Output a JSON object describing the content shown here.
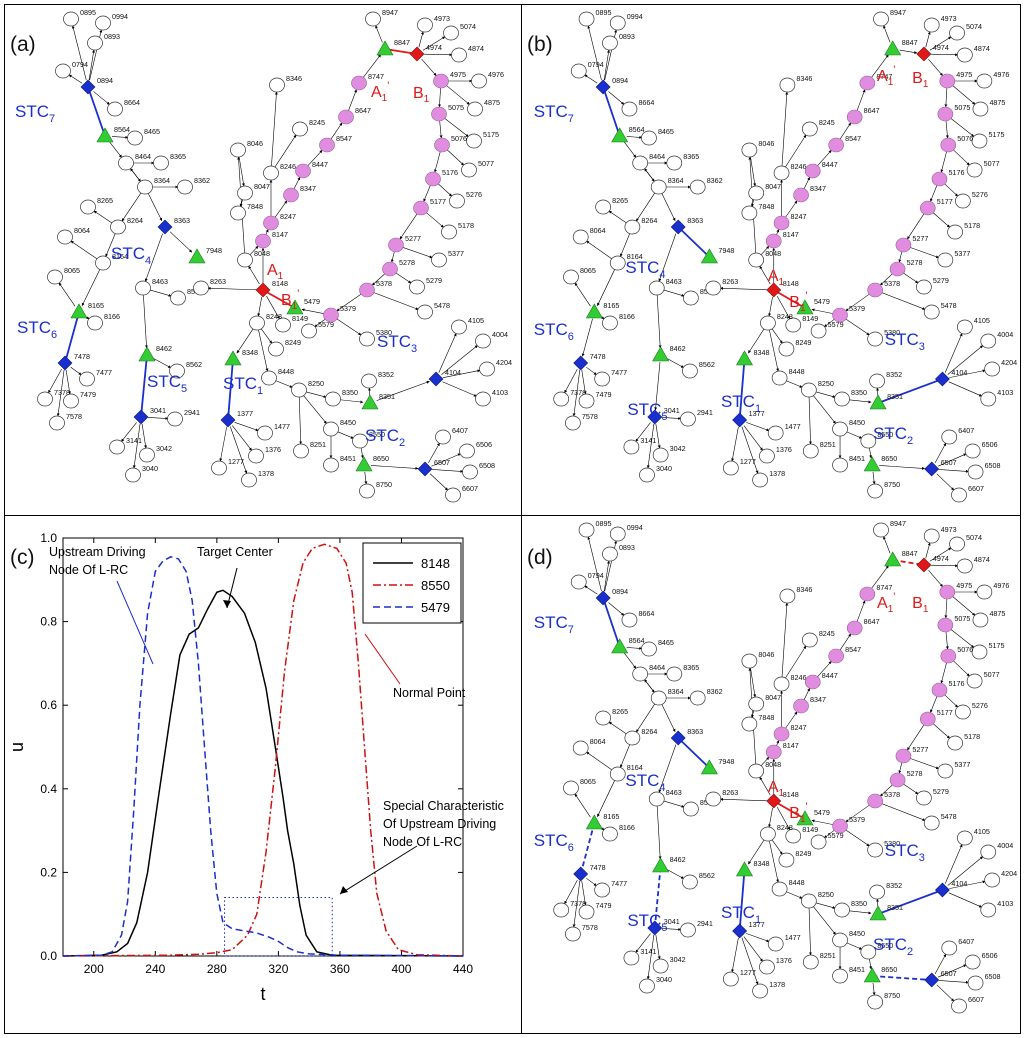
{
  "panels": {
    "a": "(a)",
    "b": "(b)",
    "c": "(c)",
    "d": "(d)"
  },
  "colors": {
    "pink": "#e08de0",
    "green": "#33cc33",
    "blue": "#1a2fcc",
    "red": "#e01818",
    "black": "#000000",
    "redcurve": "#d01010",
    "bluecurve": "#1a2fcc"
  },
  "network": {
    "nodes": [
      [
        "0895",
        ".",
        ""
      ],
      [
        "0994",
        ".",
        ""
      ],
      [
        "0893",
        ".",
        ""
      ],
      [
        "0794",
        ".",
        ""
      ],
      [
        "0894",
        "blue",
        ""
      ],
      [
        "8664",
        ".",
        ""
      ],
      [
        "8564",
        "green",
        ""
      ],
      [
        "8465",
        ".",
        ""
      ],
      [
        "8464",
        ".",
        ""
      ],
      [
        "8365",
        ".",
        ""
      ],
      [
        "8364",
        ".",
        ""
      ],
      [
        "8362",
        ".",
        ""
      ],
      [
        "8363",
        "blue",
        ""
      ],
      [
        "8265",
        ".",
        ""
      ],
      [
        "8264",
        ".",
        ""
      ],
      [
        "8064",
        ".",
        ""
      ],
      [
        "8164",
        ".",
        ""
      ],
      [
        "8065",
        ".",
        ""
      ],
      [
        "8165",
        "green",
        ""
      ],
      [
        "8166",
        ".",
        ""
      ],
      [
        "7478",
        "blue",
        ""
      ],
      [
        "7477",
        ".",
        ""
      ],
      [
        "7378",
        ".",
        ""
      ],
      [
        "7479",
        ".",
        ""
      ],
      [
        "7578",
        ".",
        ""
      ],
      [
        "8463",
        ".",
        ""
      ],
      [
        "8563",
        ".",
        ""
      ],
      [
        "8462",
        "green",
        ""
      ],
      [
        "8562",
        ".",
        ""
      ],
      [
        "3041",
        "blue",
        ""
      ],
      [
        "2941",
        ".",
        ""
      ],
      [
        "3141",
        ".",
        ""
      ],
      [
        "3042",
        ".",
        ""
      ],
      [
        "3040",
        ".",
        ""
      ],
      [
        "8346",
        ".",
        ""
      ],
      [
        "8245",
        ".",
        ""
      ],
      [
        "8046",
        ".",
        ""
      ],
      [
        "8246",
        ".",
        ""
      ],
      [
        "8047",
        ".",
        ""
      ],
      [
        "7848",
        ".",
        ""
      ],
      [
        "7948",
        "green",
        ""
      ],
      [
        "8048",
        ".",
        ""
      ],
      [
        "8263",
        ".",
        ""
      ],
      [
        "8147",
        "pink",
        ""
      ],
      [
        "8247",
        "pink",
        ""
      ],
      [
        "8347",
        "pink",
        ""
      ],
      [
        "8447",
        "pink",
        ""
      ],
      [
        "8547",
        "pink",
        ""
      ],
      [
        "8647",
        "pink",
        ""
      ],
      [
        "8747",
        "pink",
        ""
      ],
      [
        "8847",
        "green",
        ""
      ],
      [
        "8947",
        ".",
        ""
      ],
      [
        "4974",
        "red",
        ""
      ],
      [
        "4973",
        ".",
        ""
      ],
      [
        "5074",
        ".",
        ""
      ],
      [
        "4874",
        ".",
        ""
      ],
      [
        "4975",
        "pink",
        ""
      ],
      [
        "4976",
        ".",
        ""
      ],
      [
        "4875",
        ".",
        ""
      ],
      [
        "5075",
        "pink",
        ""
      ],
      [
        "5175",
        ".",
        ""
      ],
      [
        "5076",
        "pink",
        ""
      ],
      [
        "5077",
        ".",
        ""
      ],
      [
        "5176",
        "pink",
        ""
      ],
      [
        "5276",
        ".",
        ""
      ],
      [
        "5177",
        "pink",
        ""
      ],
      [
        "5178",
        ".",
        ""
      ],
      [
        "5277",
        "pink",
        ""
      ],
      [
        "5377",
        ".",
        ""
      ],
      [
        "5278",
        "pink",
        ""
      ],
      [
        "5279",
        ".",
        ""
      ],
      [
        "5378",
        "pink",
        ""
      ],
      [
        "5478",
        ".",
        ""
      ],
      [
        "5379",
        "pink",
        ""
      ],
      [
        "5380",
        ".",
        ""
      ],
      [
        "5579",
        ".",
        ""
      ],
      [
        "5479",
        "green",
        ""
      ],
      [
        "8148",
        "red",
        ""
      ],
      [
        "8149",
        ".",
        ""
      ],
      [
        "8248",
        ".",
        ""
      ],
      [
        "8249",
        ".",
        ""
      ],
      [
        "8348",
        "green",
        ""
      ],
      [
        "8448",
        ".",
        ""
      ],
      [
        "8250",
        ".",
        ""
      ],
      [
        "1377",
        "blue",
        ""
      ],
      [
        "1477",
        ".",
        ""
      ],
      [
        "1376",
        ".",
        ""
      ],
      [
        "1277",
        ".",
        ""
      ],
      [
        "1378",
        ".",
        ""
      ],
      [
        "8350",
        ".",
        ""
      ],
      [
        "8351",
        "green",
        ""
      ],
      [
        "8352",
        ".",
        ""
      ],
      [
        "8450",
        ".",
        ""
      ],
      [
        "8251",
        ".",
        ""
      ],
      [
        "8550",
        ".",
        ""
      ],
      [
        "8451",
        ".",
        ""
      ],
      [
        "8650",
        "green",
        ""
      ],
      [
        "8750",
        ".",
        ""
      ],
      [
        "6507",
        "blue",
        ""
      ],
      [
        "6407",
        ".",
        ""
      ],
      [
        "6506",
        ".",
        ""
      ],
      [
        "6508",
        ".",
        ""
      ],
      [
        "6607",
        ".",
        ""
      ],
      [
        "4104",
        "blue",
        ""
      ],
      [
        "4105",
        ".",
        ""
      ],
      [
        "4004",
        ".",
        ""
      ],
      [
        "4204",
        ".",
        ""
      ],
      [
        "4103",
        ".",
        ""
      ]
    ],
    "stc_labels": [
      [
        "STC",
        "7"
      ],
      [
        "STC",
        "4"
      ],
      [
        "STC",
        "6"
      ],
      [
        "STC",
        "5"
      ],
      [
        "STC",
        "1"
      ],
      [
        "STC",
        "3"
      ],
      [
        "STC",
        "2"
      ]
    ],
    "red_labels": [
      [
        "A",
        "1",
        ""
      ],
      [
        "B",
        "1",
        "'"
      ],
      [
        "A",
        "1",
        "'"
      ],
      [
        "B",
        "1",
        ""
      ]
    ]
  },
  "chart_data": {
    "type": "line",
    "xlabel": "t",
    "ylabel": "u",
    "xlim": [
      180,
      440
    ],
    "ylim": [
      0.0,
      1.0
    ],
    "xticks": [
      "200",
      "240",
      "280",
      "320",
      "360",
      "400",
      "440"
    ],
    "yticks": [
      "0.0",
      "0.2",
      "0.4",
      "0.6",
      "0.8",
      "1.0"
    ],
    "legend_position": "top-right",
    "series": [
      {
        "name": "8148",
        "style": "solid",
        "color": "#000000",
        "points": [
          [
            180,
            0
          ],
          [
            205,
            0.002
          ],
          [
            215,
            0.01
          ],
          [
            222,
            0.03
          ],
          [
            228,
            0.08
          ],
          [
            235,
            0.2
          ],
          [
            242,
            0.38
          ],
          [
            250,
            0.58
          ],
          [
            256,
            0.72
          ],
          [
            262,
            0.77
          ],
          [
            268,
            0.785
          ],
          [
            274,
            0.83
          ],
          [
            280,
            0.87
          ],
          [
            284,
            0.875
          ],
          [
            290,
            0.86
          ],
          [
            298,
            0.82
          ],
          [
            305,
            0.75
          ],
          [
            312,
            0.64
          ],
          [
            318,
            0.5
          ],
          [
            323,
            0.38
          ],
          [
            326,
            0.3
          ],
          [
            330,
            0.22
          ],
          [
            334,
            0.12
          ],
          [
            338,
            0.05
          ],
          [
            345,
            0.01
          ],
          [
            355,
            0.002
          ],
          [
            440,
            0
          ]
        ]
      },
      {
        "name": "8550",
        "style": "dashdot",
        "color": "#d01010",
        "points": [
          [
            180,
            0
          ],
          [
            250,
            0.002
          ],
          [
            268,
            0.004
          ],
          [
            280,
            0.008
          ],
          [
            290,
            0.015
          ],
          [
            300,
            0.05
          ],
          [
            306,
            0.1
          ],
          [
            312,
            0.25
          ],
          [
            318,
            0.45
          ],
          [
            324,
            0.68
          ],
          [
            330,
            0.85
          ],
          [
            336,
            0.94
          ],
          [
            342,
            0.975
          ],
          [
            350,
            0.985
          ],
          [
            358,
            0.975
          ],
          [
            364,
            0.94
          ],
          [
            368,
            0.87
          ],
          [
            372,
            0.7
          ],
          [
            376,
            0.5
          ],
          [
            380,
            0.3
          ],
          [
            384,
            0.15
          ],
          [
            390,
            0.06
          ],
          [
            398,
            0.015
          ],
          [
            410,
            0.003
          ],
          [
            440,
            0
          ]
        ]
      },
      {
        "name": "5479",
        "style": "dashed",
        "color": "#1a2fcc",
        "points": [
          [
            180,
            0
          ],
          [
            205,
            0.002
          ],
          [
            212,
            0.01
          ],
          [
            218,
            0.05
          ],
          [
            222,
            0.13
          ],
          [
            226,
            0.35
          ],
          [
            230,
            0.6
          ],
          [
            235,
            0.82
          ],
          [
            240,
            0.92
          ],
          [
            245,
            0.945
          ],
          [
            250,
            0.955
          ],
          [
            255,
            0.95
          ],
          [
            260,
            0.92
          ],
          [
            264,
            0.85
          ],
          [
            268,
            0.7
          ],
          [
            272,
            0.5
          ],
          [
            276,
            0.3
          ],
          [
            280,
            0.15
          ],
          [
            284,
            0.08
          ],
          [
            290,
            0.065
          ],
          [
            298,
            0.06
          ],
          [
            306,
            0.055
          ],
          [
            314,
            0.045
          ],
          [
            320,
            0.035
          ],
          [
            326,
            0.02
          ],
          [
            332,
            0.01
          ],
          [
            340,
            0.005
          ],
          [
            360,
            0.002
          ],
          [
            440,
            0
          ]
        ]
      }
    ],
    "special_box": {
      "x": [
        285,
        355
      ],
      "y": [
        0.0,
        0.14
      ]
    },
    "annotations": {
      "upstream": [
        "Upstream Driving",
        "Node Of L-RC"
      ],
      "target": "Target Center",
      "normal": "Normal Point",
      "special": [
        "Special Characteristic",
        "Of Upstream Driving",
        "Node Of L-RC"
      ]
    }
  }
}
